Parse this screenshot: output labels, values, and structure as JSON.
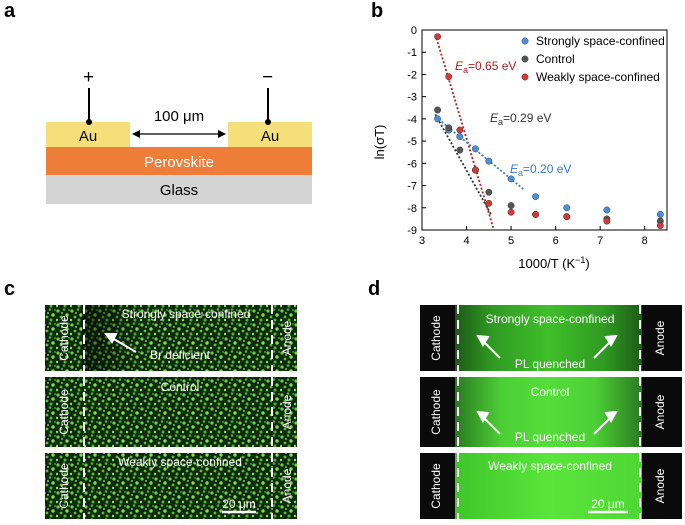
{
  "panels": {
    "a": "a",
    "b": "b",
    "c": "c",
    "d": "d"
  },
  "panel_a": {
    "plus": "+",
    "minus": "−",
    "gap_label": "100 μm",
    "electrode_left": "Au",
    "electrode_right": "Au",
    "layer_perovskite": "Perovskite",
    "layer_glass": "Glass",
    "colors": {
      "au": "#f5df7a",
      "perovskite": "#ee7d3a",
      "glass": "#d4d4d4"
    }
  },
  "panel_c": {
    "images": [
      {
        "title": "Strongly space-confined",
        "left": "Cathode",
        "right": "Anode",
        "note": "Br deficient"
      },
      {
        "title": "Control",
        "left": "Cathode",
        "right": "Anode"
      },
      {
        "title": "Weakly space-confined",
        "left": "Cathode",
        "right": "Anode",
        "scale": "20 μm"
      }
    ]
  },
  "panel_d": {
    "images": [
      {
        "title": "Strongly space-confined",
        "left": "Cathode",
        "right": "Anode",
        "note": "PL quenched"
      },
      {
        "title": "Control",
        "left": "Cathode",
        "right": "Anode",
        "note": "PL quenched"
      },
      {
        "title": "Weakly space-confined",
        "left": "Cathode",
        "right": "Anode",
        "scale": "20 μm"
      }
    ]
  },
  "chart_data": {
    "type": "scatter",
    "xlabel_main": "1000/T (K",
    "xlabel_sup": "−1",
    "xlabel_end": ")",
    "ylabel": "ln(σT)",
    "xlim": [
      3,
      8.5
    ],
    "ylim": [
      -9,
      0
    ],
    "xticks": [
      3,
      4,
      5,
      6,
      7,
      8
    ],
    "yticks": [
      0,
      -1,
      -2,
      -3,
      -4,
      -5,
      -6,
      -7,
      -8,
      -9
    ],
    "legend_position": "top-right",
    "series": [
      {
        "name": "Strongly space-confined",
        "color": "#4a90d9",
        "x": [
          3.35,
          3.6,
          3.85,
          4.2,
          4.5,
          5.0,
          5.55,
          6.25,
          7.15,
          8.35
        ],
        "y": [
          -4.0,
          -4.5,
          -4.8,
          -5.35,
          -5.9,
          -6.7,
          -7.5,
          -8.0,
          -8.1,
          -8.3
        ]
      },
      {
        "name": "Control",
        "color": "#555555",
        "x": [
          3.35,
          3.6,
          3.85,
          4.2,
          4.5,
          5.0,
          5.55,
          6.25,
          7.15,
          8.35
        ],
        "y": [
          -3.6,
          -4.4,
          -5.4,
          -6.3,
          -7.3,
          -7.9,
          -8.3,
          -8.4,
          -8.5,
          -8.6
        ]
      },
      {
        "name": "Weakly space-confined",
        "color": "#d23a3a",
        "x": [
          3.35,
          3.6,
          3.85,
          4.2,
          4.5,
          5.0,
          5.55,
          6.25,
          7.15,
          8.35
        ],
        "y": [
          -0.3,
          -2.1,
          -4.5,
          -6.3,
          -7.8,
          -8.2,
          -8.3,
          -8.4,
          -8.6,
          -8.8
        ]
      }
    ],
    "fits": [
      {
        "label_sub": "a",
        "value": "=0.65 eV",
        "color": "#b02020",
        "x": [
          3.3,
          4.6
        ],
        "y": [
          -0.2,
          -8.9
        ]
      },
      {
        "label_sub": "a",
        "value": "=0.29 eV",
        "color": "#333333",
        "x": [
          3.3,
          4.55
        ],
        "y": [
          -3.8,
          -8.3
        ]
      },
      {
        "label_sub": "a",
        "value": "=0.20 eV",
        "color": "#3a78c8",
        "x": [
          3.3,
          5.3
        ],
        "y": [
          -3.9,
          -7.2
        ]
      }
    ],
    "fit_label_prefix": "E"
  }
}
